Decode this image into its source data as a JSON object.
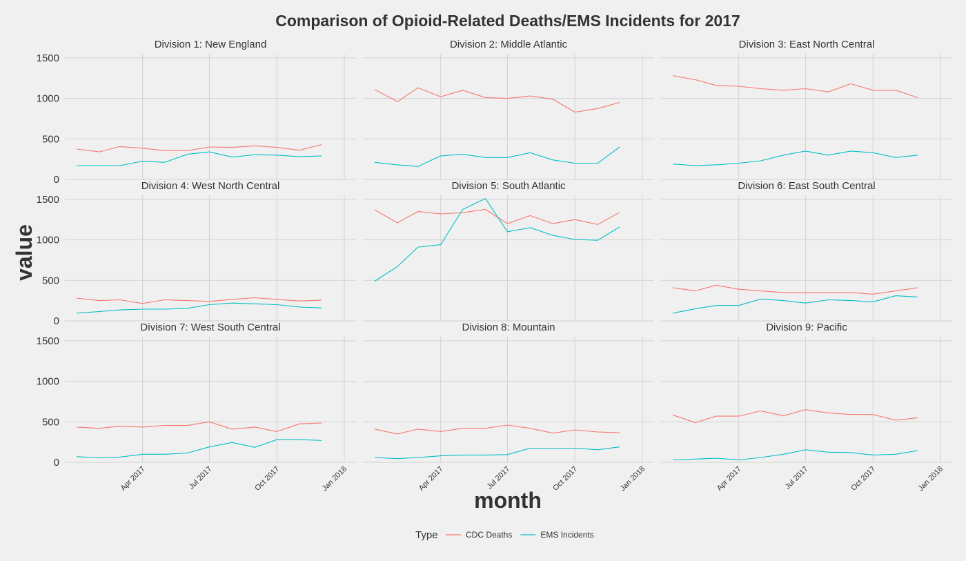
{
  "chart_data": {
    "type": "line",
    "title": "Comparison of Opioid-Related Deaths/EMS Incidents for 2017",
    "xlabel": "month",
    "ylabel": "value",
    "x_domain": [
      "2017-01-01",
      "2018-01-01"
    ],
    "ylim": [
      0,
      1550
    ],
    "yticks": [
      0,
      500,
      1000,
      1500
    ],
    "xticks": [
      {
        "date": "2017-04-01",
        "label": "Apr 2017"
      },
      {
        "date": "2017-07-01",
        "label": "Jul 2017"
      },
      {
        "date": "2017-10-01",
        "label": "Oct 2017"
      },
      {
        "date": "2018-01-01",
        "label": "Jan 2018"
      }
    ],
    "months": [
      "2017-01",
      "2017-02",
      "2017-03",
      "2017-04",
      "2017-05",
      "2017-06",
      "2017-07",
      "2017-08",
      "2017-09",
      "2017-10",
      "2017-11",
      "2017-12",
      "2018-01"
    ],
    "grid": true,
    "legend": {
      "title": "Type",
      "position": "bottom",
      "entries": [
        {
          "name": "CDC Deaths",
          "color": "#f8766d"
        },
        {
          "name": "EMS Incidents",
          "color": "#00bfc4"
        }
      ]
    },
    "panels": [
      {
        "label": "Division 1: New England",
        "series": [
          {
            "name": "CDC Deaths",
            "values": [
              375,
              340,
              405,
              385,
              355,
              355,
              400,
              395,
              415,
              395,
              360,
              430
            ]
          },
          {
            "name": "EMS Incidents",
            "values": [
              170,
              170,
              170,
              225,
              210,
              310,
              340,
              275,
              305,
              300,
              280,
              290
            ]
          }
        ]
      },
      {
        "label": "Division 2: Middle Atlantic",
        "series": [
          {
            "name": "CDC Deaths",
            "values": [
              1110,
              960,
              1130,
              1020,
              1100,
              1010,
              1000,
              1030,
              990,
              830,
              875,
              950
            ]
          },
          {
            "name": "EMS Incidents",
            "values": [
              210,
              180,
              160,
              290,
              310,
              270,
              270,
              330,
              240,
              200,
              200,
              400
            ]
          }
        ]
      },
      {
        "label": "Division 3: East North Central",
        "series": [
          {
            "name": "CDC Deaths",
            "values": [
              1280,
              1230,
              1160,
              1150,
              1120,
              1100,
              1120,
              1080,
              1180,
              1100,
              1100,
              1010
            ]
          },
          {
            "name": "EMS Incidents",
            "values": [
              190,
              170,
              180,
              200,
              230,
              300,
              350,
              300,
              350,
              330,
              270,
              300
            ]
          }
        ]
      },
      {
        "label": "Division 4: West North Central",
        "series": [
          {
            "name": "CDC Deaths",
            "values": [
              280,
              250,
              260,
              215,
              260,
              250,
              240,
              265,
              285,
              265,
              245,
              255
            ]
          },
          {
            "name": "EMS Incidents",
            "values": [
              95,
              115,
              135,
              145,
              145,
              155,
              200,
              220,
              210,
              200,
              170,
              160
            ]
          }
        ]
      },
      {
        "label": "Division 5: South Atlantic",
        "series": [
          {
            "name": "CDC Deaths",
            "values": [
              1370,
              1210,
              1350,
              1320,
              1335,
              1375,
              1200,
              1300,
              1200,
              1250,
              1190,
              1340
            ]
          },
          {
            "name": "EMS Incidents",
            "values": [
              490,
              670,
              910,
              940,
              1375,
              1510,
              1100,
              1150,
              1055,
              1005,
              995,
              1160
            ]
          }
        ]
      },
      {
        "label": "Division 6: East South Central",
        "series": [
          {
            "name": "CDC Deaths",
            "values": [
              410,
              370,
              440,
              390,
              370,
              350,
              350,
              350,
              350,
              330,
              370,
              410
            ]
          },
          {
            "name": "EMS Incidents",
            "values": [
              95,
              150,
              190,
              190,
              270,
              250,
              220,
              260,
              250,
              235,
              310,
              295
            ]
          }
        ]
      },
      {
        "label": "Division 7: West South Central",
        "series": [
          {
            "name": "CDC Deaths",
            "values": [
              435,
              420,
              445,
              435,
              455,
              455,
              500,
              410,
              435,
              380,
              475,
              485
            ]
          },
          {
            "name": "EMS Incidents",
            "values": [
              70,
              55,
              65,
              100,
              100,
              115,
              190,
              245,
              185,
              280,
              280,
              270
            ]
          }
        ]
      },
      {
        "label": "Division 8: Mountain",
        "series": [
          {
            "name": "CDC Deaths",
            "values": [
              410,
              350,
              410,
              380,
              420,
              420,
              460,
              420,
              360,
              400,
              375,
              365
            ]
          },
          {
            "name": "EMS Incidents",
            "values": [
              60,
              45,
              60,
              80,
              90,
              90,
              95,
              175,
              170,
              175,
              155,
              190
            ]
          }
        ]
      },
      {
        "label": "Division 9: Pacific",
        "series": [
          {
            "name": "CDC Deaths",
            "values": [
              585,
              490,
              570,
              570,
              635,
              575,
              650,
              610,
              590,
              590,
              520,
              550
            ]
          },
          {
            "name": "EMS Incidents",
            "values": [
              30,
              40,
              50,
              30,
              60,
              100,
              155,
              125,
              120,
              90,
              100,
              145
            ]
          }
        ]
      }
    ]
  }
}
